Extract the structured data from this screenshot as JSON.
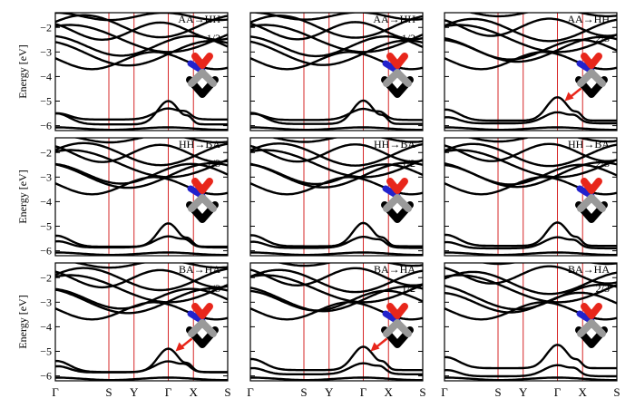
{
  "figure": {
    "ylabel": "Energy [eV]",
    "k_labels": [
      "Γ",
      "S",
      "Y",
      "Γ",
      "X",
      "S"
    ],
    "k_positions": [
      0,
      1,
      1.47,
      2.11,
      2.58,
      3.22
    ],
    "y_ticks": [
      -2,
      -3,
      -4,
      -5,
      -6
    ],
    "colors": {
      "bands": "#000000",
      "kpath_lines": "#d62728",
      "arrow": "#e8261b",
      "atom_top": "#e8261b",
      "atom_side": "#2222cc",
      "atom_mid": "#9a9a9a",
      "atom_bottom": "#000000"
    }
  },
  "chart_data": [
    {
      "type": "line",
      "row": 0,
      "col": 0,
      "title": "AA→HH",
      "fraction": "1/3",
      "xlabel": "",
      "ylabel": "Energy [eV]",
      "ylim": [
        -6.2,
        -1.4
      ],
      "arrow": false,
      "arrow_variant": 0
    },
    {
      "type": "line",
      "row": 0,
      "col": 1,
      "title": "AA→HH",
      "fraction": "1/2",
      "xlabel": "",
      "ylabel": "",
      "ylim": [
        -6.2,
        -1.4
      ],
      "arrow": false,
      "arrow_variant": 0
    },
    {
      "type": "line",
      "row": 0,
      "col": 2,
      "title": "AA→HH",
      "fraction": "2/3",
      "xlabel": "",
      "ylabel": "",
      "ylim": [
        -6.2,
        -1.4
      ],
      "arrow": true,
      "arrow_variant": 2
    },
    {
      "type": "line",
      "row": 1,
      "col": 0,
      "title": "HH→BA",
      "fraction": "1/3",
      "xlabel": "",
      "ylabel": "Energy [eV]",
      "ylim": [
        -6.2,
        -1.4
      ],
      "arrow": false,
      "arrow_variant": 1
    },
    {
      "type": "line",
      "row": 1,
      "col": 1,
      "title": "HH→BA",
      "fraction": "1/2",
      "xlabel": "",
      "ylabel": "",
      "ylim": [
        -6.2,
        -1.4
      ],
      "arrow": false,
      "arrow_variant": 1
    },
    {
      "type": "line",
      "row": 1,
      "col": 2,
      "title": "HH→BA",
      "fraction": "2/3",
      "xlabel": "",
      "ylabel": "",
      "ylim": [
        -6.2,
        -1.4
      ],
      "arrow": false,
      "arrow_variant": 1
    },
    {
      "type": "line",
      "row": 2,
      "col": 0,
      "title": "BA→HA",
      "fraction": "1/3",
      "xlabel": "",
      "ylabel": "Energy [eV]",
      "ylim": [
        -6.2,
        -1.4
      ],
      "arrow": true,
      "arrow_variant": 0
    },
    {
      "type": "line",
      "row": 2,
      "col": 1,
      "title": "BA→HA",
      "fraction": "1/2",
      "xlabel": "",
      "ylabel": "",
      "ylim": [
        -6.2,
        -1.4
      ],
      "arrow": true,
      "arrow_variant": 1
    },
    {
      "type": "line",
      "row": 2,
      "col": 2,
      "title": "BA→HA",
      "fraction": "2/3",
      "xlabel": "",
      "ylabel": "",
      "ylim": [
        -6.2,
        -1.4
      ],
      "arrow": false,
      "arrow_variant": 2
    }
  ]
}
